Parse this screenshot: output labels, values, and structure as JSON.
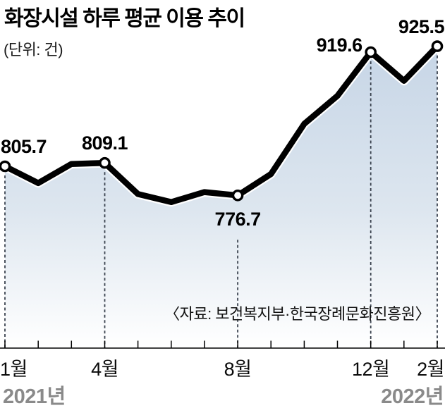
{
  "header": {
    "title": "화장시설 하루 평균 이용 추이",
    "unit_label": "(단위: 건)"
  },
  "source_note": "〈자료: 보건복지부·한국장례문화진흥원〉",
  "chart_data": {
    "type": "area",
    "title": "화장시설 하루 평균 이용 추이",
    "unit": "건",
    "x_months": [
      "2021-01",
      "2021-02",
      "2021-03",
      "2021-04",
      "2021-05",
      "2021-06",
      "2021-07",
      "2021-08",
      "2021-09",
      "2021-10",
      "2021-11",
      "2021-12",
      "2022-01",
      "2022-02"
    ],
    "series": [
      {
        "name": "화장시설 하루 평균 이용 건수",
        "values": [
          805.7,
          789,
          808,
          809.1,
          778,
          770,
          780,
          776.7,
          798,
          848,
          876,
          919.6,
          891,
          925.5
        ]
      }
    ],
    "point_labels": [
      {
        "index": 0,
        "text": "805.7",
        "placement": "above-left"
      },
      {
        "index": 3,
        "text": "809.1",
        "placement": "above"
      },
      {
        "index": 7,
        "text": "776.7",
        "placement": "below"
      },
      {
        "index": 11,
        "text": "919.6",
        "placement": "left"
      },
      {
        "index": 13,
        "text": "925.5",
        "placement": "above-right"
      }
    ],
    "x_tick_labels": [
      {
        "index": 0,
        "label": "1월"
      },
      {
        "index": 3,
        "label": "4월"
      },
      {
        "index": 7,
        "label": "8월"
      },
      {
        "index": 11,
        "label": "12월"
      },
      {
        "index": 13,
        "label": "2월"
      }
    ],
    "year_labels": [
      {
        "label": "2021년",
        "position": "left"
      },
      {
        "label": "2022년",
        "position": "right"
      }
    ],
    "ylim": [
      755,
      940
    ],
    "grid": false,
    "legend": "none",
    "colors": {
      "line": "#000000",
      "line_casing": "#ffffff",
      "marker_fill": "#ffffff",
      "marker_stroke": "#000000",
      "area_top": "#c6d5e6",
      "area_mid": "#dde6ef",
      "area_bottom": "#ffffff",
      "dash_line": "#3a424e",
      "axis": "#000000",
      "year_label": "#8a8a8a",
      "text": "#111111"
    }
  }
}
